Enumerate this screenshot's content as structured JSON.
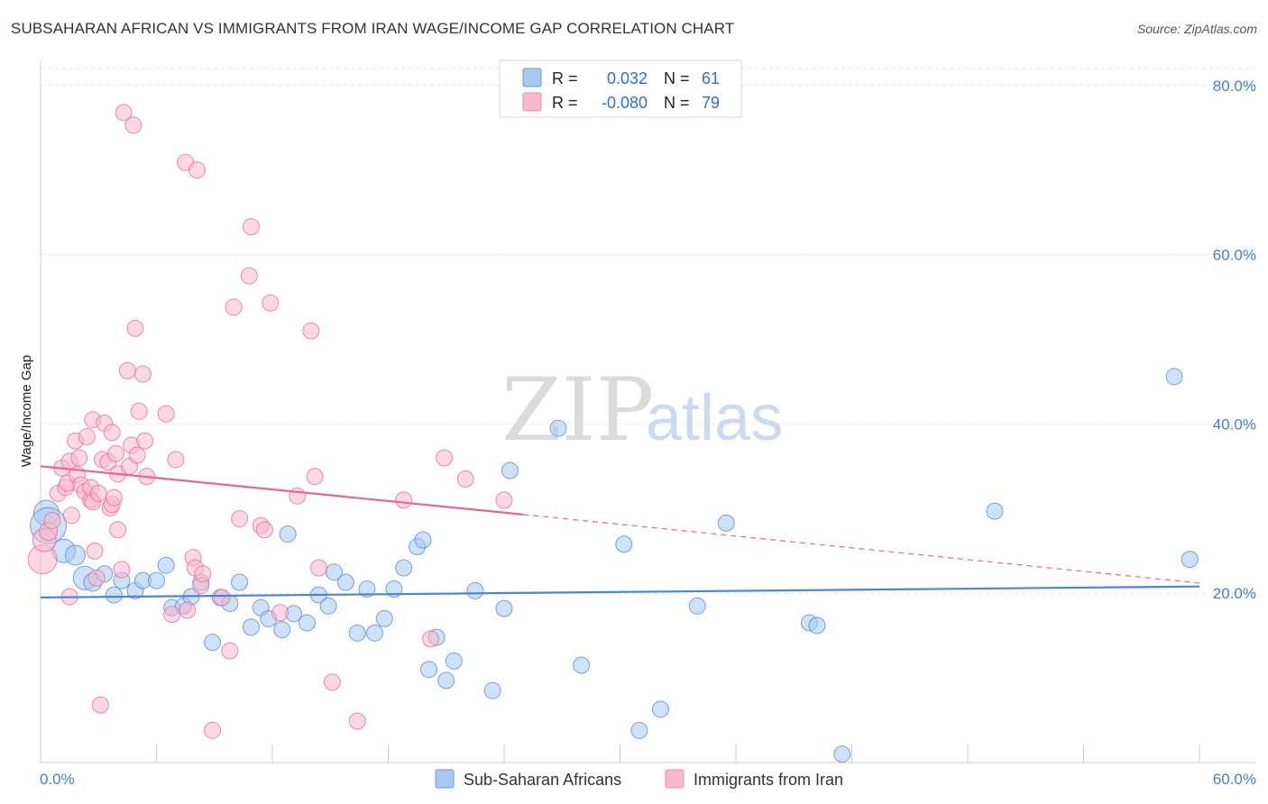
{
  "header": {
    "title": "SUBSAHARAN AFRICAN VS IMMIGRANTS FROM IRAN WAGE/INCOME GAP CORRELATION CHART",
    "source": "Source: ZipAtlas.com"
  },
  "watermark": {
    "zip": "ZIP",
    "atlas": "atlas"
  },
  "legend": {
    "rows": [
      {
        "r_label": "R =",
        "r_value": "0.032",
        "n_label": "N =",
        "n_value": "61",
        "color": "#a8c8f0"
      },
      {
        "r_label": "R =",
        "r_value": "-0.080",
        "n_label": "N =",
        "n_value": "79",
        "color": "#f8b8cc"
      }
    ]
  },
  "bottom_legend": [
    {
      "label": "Sub-Saharan Africans",
      "color": "#a8c8f0"
    },
    {
      "label": "Immigrants from Iran",
      "color": "#f8b8cc"
    }
  ],
  "chart_data": {
    "type": "scatter",
    "title": "SUBSAHARAN AFRICAN VS IMMIGRANTS FROM IRAN WAGE/INCOME GAP CORRELATION CHART",
    "xlabel": "",
    "ylabel": "Wage/Income Gap",
    "xlim": [
      0,
      60
    ],
    "ylim": [
      0,
      82
    ],
    "x_tick_labels": [
      "0.0%",
      "60.0%"
    ],
    "y_tick_labels": [
      "20.0%",
      "40.0%",
      "60.0%",
      "80.0%"
    ],
    "y_ticks": [
      20,
      40,
      60,
      80
    ],
    "grid": true,
    "legend_position": "top-center",
    "series": [
      {
        "name": "Sub-Saharan Africans",
        "color": "#4a86d8",
        "fill": "#a8c8f0",
        "points": [
          [
            0.3,
            29.5,
            14
          ],
          [
            0.4,
            28,
            20
          ],
          [
            1.2,
            25,
            13
          ],
          [
            1.8,
            24.5,
            11
          ],
          [
            2.3,
            21.8,
            13
          ],
          [
            2.7,
            21.3,
            10
          ],
          [
            3.3,
            22.3,
            9
          ],
          [
            3.8,
            19.8,
            9
          ],
          [
            4.2,
            21.5,
            9
          ],
          [
            4.9,
            20.3,
            9
          ],
          [
            5.3,
            21.5,
            9
          ],
          [
            6.0,
            21.5,
            9
          ],
          [
            6.5,
            23.3,
            9
          ],
          [
            6.8,
            18.3,
            9
          ],
          [
            7.4,
            18.5,
            9
          ],
          [
            7.8,
            19.6,
            9
          ],
          [
            8.3,
            21.3,
            9
          ],
          [
            8.9,
            14.2,
            9
          ],
          [
            9.3,
            19.5,
            9
          ],
          [
            9.8,
            18.8,
            9
          ],
          [
            10.3,
            21.3,
            9
          ],
          [
            10.9,
            16.0,
            9
          ],
          [
            11.4,
            18.3,
            9
          ],
          [
            11.8,
            17.0,
            9
          ],
          [
            12.5,
            15.7,
            9
          ],
          [
            12.8,
            27.0,
            9
          ],
          [
            13.1,
            17.6,
            9
          ],
          [
            13.8,
            16.5,
            9
          ],
          [
            14.4,
            19.8,
            9
          ],
          [
            14.9,
            18.5,
            9
          ],
          [
            15.2,
            22.5,
            9
          ],
          [
            15.8,
            21.3,
            9
          ],
          [
            16.4,
            15.3,
            9
          ],
          [
            16.9,
            20.5,
            9
          ],
          [
            17.3,
            15.3,
            9
          ],
          [
            17.8,
            17.0,
            9
          ],
          [
            18.3,
            20.5,
            9
          ],
          [
            18.8,
            23.0,
            9
          ],
          [
            19.5,
            25.5,
            9
          ],
          [
            19.8,
            26.3,
            9
          ],
          [
            20.1,
            11.0,
            9
          ],
          [
            20.5,
            14.8,
            9
          ],
          [
            21.0,
            9.7,
            9
          ],
          [
            21.4,
            12.0,
            9
          ],
          [
            22.5,
            20.3,
            9
          ],
          [
            23.4,
            8.5,
            9
          ],
          [
            24.0,
            18.2,
            9
          ],
          [
            24.3,
            34.5,
            9
          ],
          [
            26.8,
            39.5,
            9
          ],
          [
            28.0,
            11.5,
            9
          ],
          [
            30.2,
            25.8,
            9
          ],
          [
            31.0,
            3.8,
            9
          ],
          [
            32.1,
            6.3,
            9
          ],
          [
            34.0,
            18.5,
            9
          ],
          [
            35.5,
            28.3,
            9
          ],
          [
            39.8,
            16.5,
            9
          ],
          [
            40.2,
            16.2,
            9
          ],
          [
            41.5,
            1.0,
            9
          ],
          [
            49.4,
            29.7,
            9
          ],
          [
            58.7,
            45.6,
            9
          ],
          [
            59.5,
            24.0,
            9
          ]
        ],
        "trend": {
          "x": [
            0,
            60
          ],
          "y": [
            19.5,
            20.8
          ],
          "dashed_after": null
        }
      },
      {
        "name": "Immigrants from Iran",
        "color": "#e8668f",
        "fill": "#f8b8cc",
        "points": [
          [
            0.1,
            24.0,
            16
          ],
          [
            0.2,
            26.3,
            13
          ],
          [
            0.4,
            27.3,
            10
          ],
          [
            0.6,
            28.6,
            9
          ],
          [
            0.9,
            31.8,
            9
          ],
          [
            1.1,
            34.8,
            9
          ],
          [
            1.3,
            32.5,
            9
          ],
          [
            1.4,
            33.0,
            9
          ],
          [
            1.5,
            35.6,
            9
          ],
          [
            1.5,
            19.6,
            9
          ],
          [
            1.6,
            29.2,
            9
          ],
          [
            1.8,
            38.0,
            9
          ],
          [
            1.9,
            34.0,
            9
          ],
          [
            2.0,
            36.0,
            9
          ],
          [
            2.1,
            32.8,
            9
          ],
          [
            2.3,
            32.0,
            9
          ],
          [
            2.4,
            38.5,
            9
          ],
          [
            2.6,
            31.0,
            9
          ],
          [
            2.6,
            32.5,
            9
          ],
          [
            2.7,
            30.8,
            9
          ],
          [
            2.7,
            40.5,
            9
          ],
          [
            2.8,
            25.0,
            9
          ],
          [
            2.9,
            21.8,
            9
          ],
          [
            3.0,
            31.8,
            9
          ],
          [
            3.1,
            6.8,
            9
          ],
          [
            3.2,
            35.8,
            9
          ],
          [
            3.3,
            40.1,
            9
          ],
          [
            3.5,
            35.5,
            9
          ],
          [
            3.6,
            30.1,
            9
          ],
          [
            3.7,
            39.0,
            9
          ],
          [
            3.7,
            30.5,
            9
          ],
          [
            3.8,
            31.3,
            9
          ],
          [
            3.9,
            36.5,
            9
          ],
          [
            4.0,
            27.5,
            9
          ],
          [
            4.0,
            34.1,
            9
          ],
          [
            4.2,
            22.8,
            9
          ],
          [
            4.3,
            76.8,
            9
          ],
          [
            4.5,
            46.3,
            9
          ],
          [
            4.6,
            35.0,
            9
          ],
          [
            4.7,
            37.5,
            9
          ],
          [
            4.8,
            75.3,
            9
          ],
          [
            4.9,
            51.3,
            9
          ],
          [
            5.0,
            36.3,
            9
          ],
          [
            5.1,
            41.5,
            9
          ],
          [
            5.3,
            45.9,
            9
          ],
          [
            5.4,
            38.0,
            9
          ],
          [
            5.5,
            33.8,
            9
          ],
          [
            6.5,
            41.2,
            9
          ],
          [
            7.0,
            35.8,
            9
          ],
          [
            7.5,
            70.9,
            9
          ],
          [
            7.6,
            18.0,
            9
          ],
          [
            7.9,
            24.2,
            9
          ],
          [
            8.0,
            23.0,
            9
          ],
          [
            8.1,
            70.0,
            9
          ],
          [
            8.3,
            20.9,
            9
          ],
          [
            8.4,
            22.3,
            9
          ],
          [
            8.9,
            3.8,
            9
          ],
          [
            9.4,
            19.5,
            9
          ],
          [
            9.8,
            13.2,
            9
          ],
          [
            10.0,
            53.8,
            9
          ],
          [
            10.3,
            28.8,
            9
          ],
          [
            10.8,
            57.5,
            9
          ],
          [
            10.9,
            63.3,
            9
          ],
          [
            11.4,
            28.0,
            9
          ],
          [
            11.6,
            27.5,
            9
          ],
          [
            11.9,
            54.3,
            9
          ],
          [
            12.4,
            17.7,
            9
          ],
          [
            13.3,
            31.5,
            9
          ],
          [
            14.0,
            51.0,
            9
          ],
          [
            14.2,
            33.8,
            9
          ],
          [
            14.4,
            23.0,
            9
          ],
          [
            15.1,
            9.5,
            9
          ],
          [
            16.4,
            4.9,
            9
          ],
          [
            18.8,
            31.0,
            9
          ],
          [
            20.2,
            14.6,
            9
          ],
          [
            20.9,
            36.0,
            9
          ],
          [
            22.0,
            33.5,
            9
          ],
          [
            24.0,
            31.0,
            9
          ],
          [
            6.8,
            17.5,
            9
          ]
        ],
        "trend": {
          "x": [
            0,
            25,
            60
          ],
          "y": [
            35.0,
            29.3,
            21.2
          ],
          "solid_until": 25
        }
      }
    ]
  }
}
